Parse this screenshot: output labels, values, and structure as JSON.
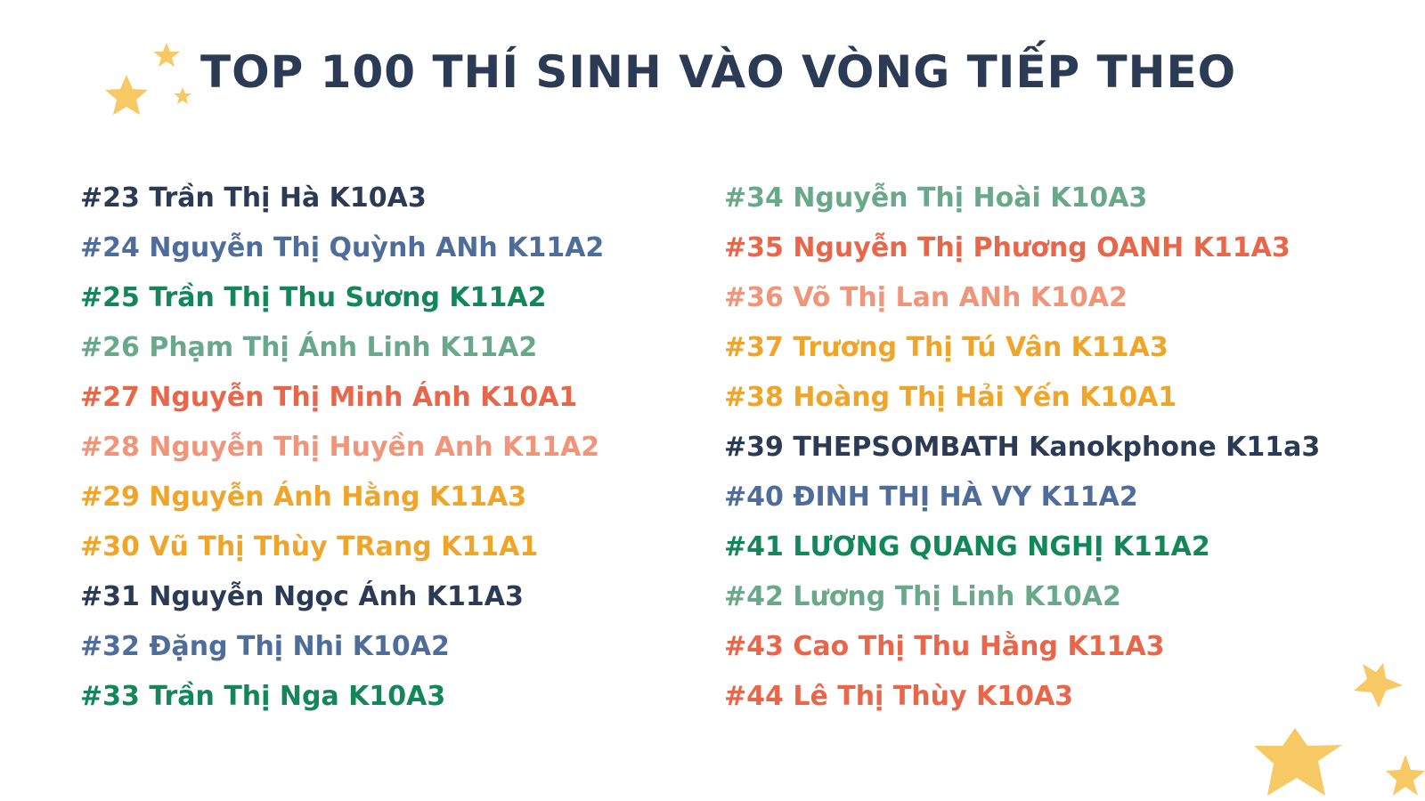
{
  "title": "TOP 100 THÍ SINH VÀO VÒNG TIẾP THEO",
  "columns": [
    {
      "entries": [
        {
          "text": "#23 Trần Thị Hà K10A3",
          "color": "#2b3a55"
        },
        {
          "text": "#24 Nguyễn Thị Quỳnh ANh K11A2",
          "color": "#4f6d9a"
        },
        {
          "text": "#25 Trần Thị Thu Sương K11A2",
          "color": "#14875a"
        },
        {
          "text": "#26 Phạm Thị Ánh Linh K11A2",
          "color": "#6aa88c"
        },
        {
          "text": "#27 Nguyễn Thị Minh Ánh K10A1",
          "color": "#e8674a"
        },
        {
          "text": "#28 Nguyễn Thị Huyền Anh K11A2",
          "color": "#f0957a"
        },
        {
          "text": "#29 Nguyễn Ánh Hằng K11A3",
          "color": "#efa52a"
        },
        {
          "text": "#30 Vũ Thị Thùy TRang K11A1",
          "color": "#efa52a"
        },
        {
          "text": "#31 Nguyễn Ngọc Ánh K11A3",
          "color": "#2b3a55"
        },
        {
          "text": "#32 Đặng Thị Nhi K10A2",
          "color": "#4f6d9a"
        },
        {
          "text": "#33 Trần Thị Nga K10A3",
          "color": "#14875a"
        }
      ]
    },
    {
      "entries": [
        {
          "text": "#34 Nguyễn Thị Hoài K10A3",
          "color": "#6aa88c"
        },
        {
          "text": "#35 Nguyễn Thị Phương OANH K11A3",
          "color": "#e8674a"
        },
        {
          "text": "#36 Võ Thị Lan ANh K10A2",
          "color": "#f0957a"
        },
        {
          "text": "#37 Trương Thị Tú Vân K11A3",
          "color": "#efa52a"
        },
        {
          "text": "#38 Hoàng Thị Hải Yến K10A1",
          "color": "#efa52a"
        },
        {
          "text": "#39 THEPSOMBATH Kanokphone K11a3",
          "color": "#2b3a55"
        },
        {
          "text": "#40 ĐINH THỊ HÀ VY K11A2",
          "color": "#4f6d9a"
        },
        {
          "text": "#41 LƯƠNG QUANG NGHỊ K11A2",
          "color": "#14875a"
        },
        {
          "text": "#42 Lương Thị Linh K10A2",
          "color": "#6aa88c"
        },
        {
          "text": "#43 Cao Thị Thu Hằng K11A3",
          "color": "#e8674a"
        },
        {
          "text": "#44 Lê Thị Thùy K10A3",
          "color": "#e8674a"
        }
      ]
    }
  ]
}
